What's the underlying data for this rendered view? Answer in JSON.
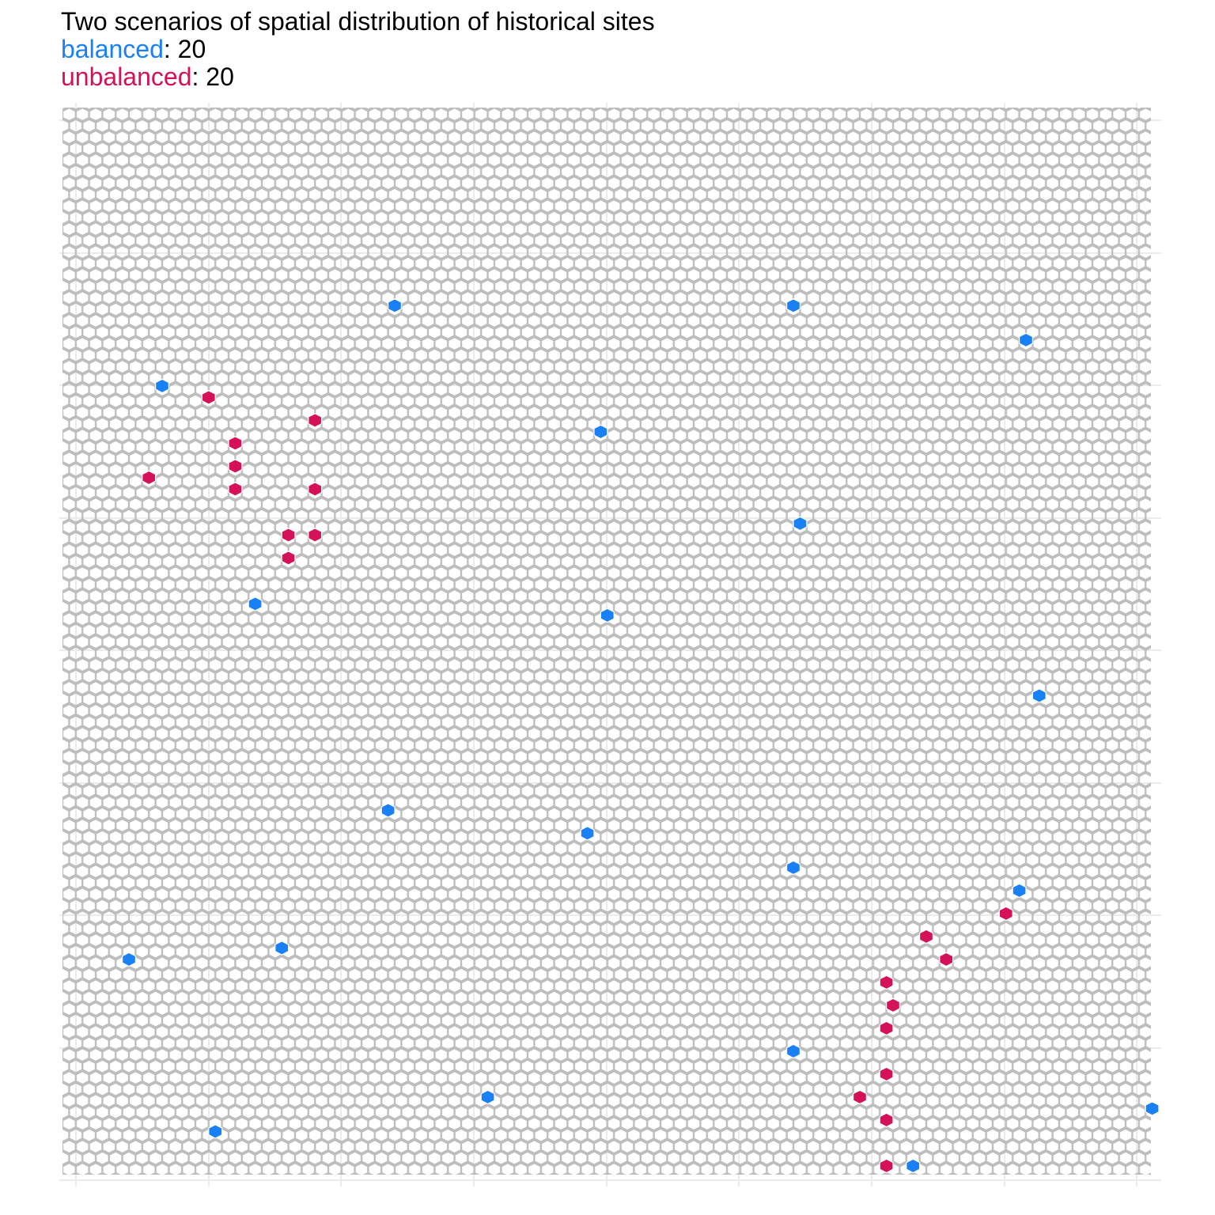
{
  "title": "Two scenarios of spatial distribution of historical sites",
  "legend": [
    {
      "label": "balanced",
      "separator": ": ",
      "count": "20",
      "color": "#1a80f5"
    },
    {
      "label": "unbalanced",
      "separator": ": ",
      "count": "20",
      "color": "#d41159"
    }
  ],
  "colors": {
    "hex_fill": "#ffffff",
    "hex_outline": "#bdbdbd",
    "gridline": "#ebebeb",
    "background": "#ffffff"
  },
  "chart_data": {
    "type": "scatter",
    "title": "Two scenarios of spatial distribution of historical sites",
    "xlim": [
      0,
      82
    ],
    "ylim": [
      0,
      52
    ],
    "grid": true,
    "tick_labels_shown": false,
    "series": [
      {
        "name": "balanced",
        "color": "#1a80f5",
        "points": [
          [
            24.5,
            43.4
          ],
          [
            54.5,
            43.4
          ],
          [
            72.0,
            41.9
          ],
          [
            7.0,
            39.9
          ],
          [
            40.0,
            37.9
          ],
          [
            55.0,
            33.9
          ],
          [
            14.0,
            30.4
          ],
          [
            40.5,
            29.9
          ],
          [
            73.0,
            26.4
          ],
          [
            24.0,
            21.4
          ],
          [
            39.0,
            20.4
          ],
          [
            54.5,
            18.9
          ],
          [
            71.5,
            17.9
          ],
          [
            16.0,
            15.4
          ],
          [
            4.5,
            14.9
          ],
          [
            54.5,
            10.9
          ],
          [
            31.5,
            8.9
          ],
          [
            81.5,
            8.4
          ],
          [
            11.0,
            7.4
          ],
          [
            63.5,
            5.9
          ]
        ]
      },
      {
        "name": "unbalanced",
        "color": "#d41159",
        "points": [
          [
            10.5,
            39.4
          ],
          [
            18.5,
            38.4
          ],
          [
            12.5,
            37.4
          ],
          [
            12.5,
            36.4
          ],
          [
            6.0,
            35.9
          ],
          [
            12.5,
            35.4
          ],
          [
            18.5,
            35.4
          ],
          [
            16.5,
            33.4
          ],
          [
            18.5,
            33.4
          ],
          [
            16.5,
            32.4
          ],
          [
            70.5,
            16.9
          ],
          [
            64.5,
            15.9
          ],
          [
            61.5,
            13.9
          ],
          [
            61.5,
            11.9
          ],
          [
            61.5,
            9.9
          ],
          [
            59.5,
            8.9
          ],
          [
            61.5,
            7.9
          ],
          [
            61.5,
            5.9
          ],
          [
            62.0,
            12.9
          ],
          [
            66.0,
            14.9
          ]
        ]
      }
    ]
  }
}
